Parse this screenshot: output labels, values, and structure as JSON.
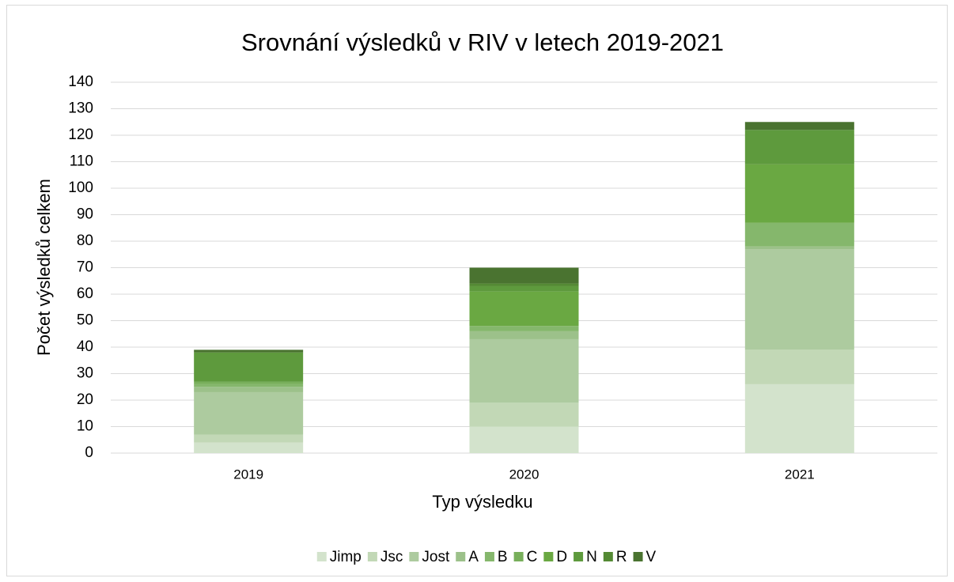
{
  "chart_data": {
    "type": "stacked_bar",
    "title": "Srovnání výsledků v RIV v letech 2019-2021",
    "x_label": "Typ výsledku",
    "y_label": "Počet výsledků celkem",
    "categories": [
      "2019",
      "2020",
      "2021"
    ],
    "series": [
      {
        "name": "Jimp",
        "color": "#d3e3cc",
        "values": [
          4,
          10,
          26
        ]
      },
      {
        "name": "Jsc",
        "color": "#c2d8b6",
        "values": [
          3,
          9,
          13
        ]
      },
      {
        "name": "Jost",
        "color": "#adcb9f",
        "values": [
          16,
          24,
          38
        ]
      },
      {
        "name": "A",
        "color": "#9cc18a",
        "values": [
          2,
          3,
          1
        ]
      },
      {
        "name": "B",
        "color": "#85b76c",
        "values": [
          1,
          2,
          9
        ]
      },
      {
        "name": "C",
        "color": "#78af5b",
        "values": [
          1,
          0,
          0
        ]
      },
      {
        "name": "D",
        "color": "#6aa842",
        "values": [
          0,
          13,
          22
        ]
      },
      {
        "name": "N",
        "color": "#5e9a3d",
        "values": [
          11,
          2,
          13
        ]
      },
      {
        "name": "R",
        "color": "#548a34",
        "values": [
          0,
          1,
          0
        ]
      },
      {
        "name": "V",
        "color": "#4a7330",
        "values": [
          1,
          6,
          3
        ]
      }
    ],
    "ylim": [
      0,
      140
    ],
    "yticks": [
      0,
      10,
      20,
      30,
      40,
      50,
      60,
      70,
      80,
      90,
      100,
      110,
      120,
      130,
      140
    ],
    "grid": true,
    "legend": "bottom"
  }
}
